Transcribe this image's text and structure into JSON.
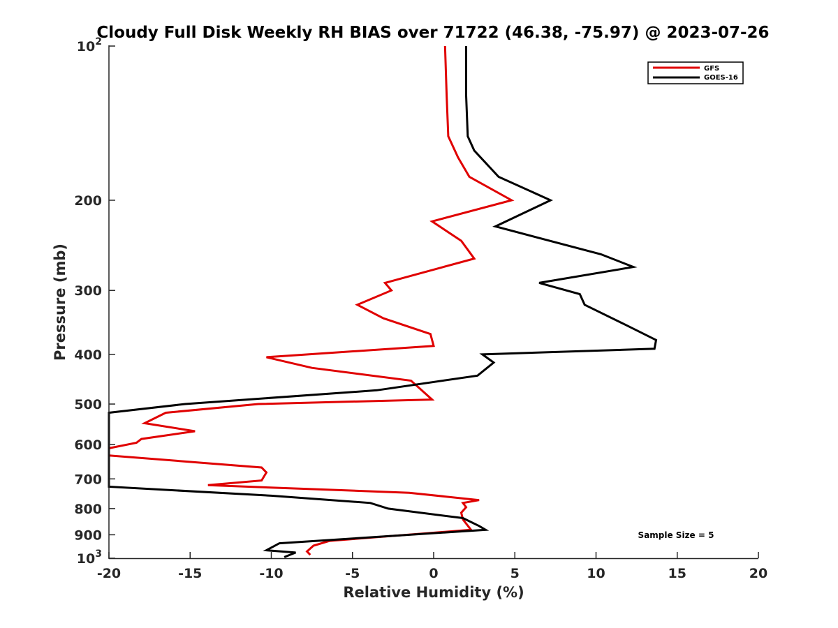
{
  "chart_data": {
    "type": "line",
    "title": "Cloudy Full Disk Weekly RH BIAS over 71722 (46.38, -75.97) @ 2023-07-26",
    "xlabel": "Relative Humidity (%)",
    "ylabel": "Pressure (mb)",
    "xlim": [
      -20,
      20
    ],
    "ylim": [
      1000,
      100
    ],
    "yscale": "log",
    "x_ticks": [
      -20,
      -15,
      -10,
      -5,
      0,
      5,
      10,
      15,
      20
    ],
    "x_tick_labels": [
      "-20",
      "-15",
      "-10",
      "-5",
      "0",
      "5",
      "10",
      "15",
      "20"
    ],
    "y_ticks": [
      100,
      200,
      300,
      400,
      500,
      600,
      700,
      800,
      900,
      1000
    ],
    "y_tick_labels": [
      {
        "base": "10",
        "exp": "2"
      },
      {
        "text": "200"
      },
      {
        "text": "300"
      },
      {
        "text": "400"
      },
      {
        "text": "500"
      },
      {
        "text": "600"
      },
      {
        "text": "700"
      },
      {
        "text": "800"
      },
      {
        "text": "900"
      },
      {
        "base": "10",
        "exp": "3"
      }
    ],
    "legend": {
      "position": "top-right",
      "entries": [
        "GFS",
        "GOES-16"
      ]
    },
    "annotation": "Sample Size = 5",
    "series": [
      {
        "name": "GFS",
        "color": "#e00000",
        "points": [
          [
            0.7,
            100
          ],
          [
            0.8,
            125
          ],
          [
            0.9,
            150
          ],
          [
            1.5,
            165
          ],
          [
            2.2,
            180
          ],
          [
            4.8,
            200
          ],
          [
            -0.1,
            220
          ],
          [
            1.7,
            240
          ],
          [
            2.5,
            260
          ],
          [
            -3.0,
            290
          ],
          [
            -2.6,
            300
          ],
          [
            -4.7,
            320
          ],
          [
            -3.1,
            340
          ],
          [
            -0.2,
            365
          ],
          [
            0.0,
            385
          ],
          [
            -10.3,
            405
          ],
          [
            -7.5,
            425
          ],
          [
            -1.4,
            450
          ],
          [
            -0.9,
            465
          ],
          [
            -0.1,
            490
          ],
          [
            -10.8,
            500
          ],
          [
            -16.5,
            520
          ],
          [
            -17.8,
            545
          ],
          [
            -14.7,
            565
          ],
          [
            -18.0,
            585
          ],
          [
            -18.3,
            595
          ],
          [
            -20.0,
            610
          ],
          [
            -20.0,
            630
          ],
          [
            -10.6,
            665
          ],
          [
            -10.3,
            680
          ],
          [
            -10.6,
            705
          ],
          [
            -13.9,
            720
          ],
          [
            -1.5,
            745
          ],
          [
            2.8,
            770
          ],
          [
            1.8,
            780
          ],
          [
            2.0,
            795
          ],
          [
            1.7,
            815
          ],
          [
            1.8,
            840
          ],
          [
            2.3,
            880
          ],
          [
            -6.4,
            925
          ],
          [
            -7.4,
            945
          ],
          [
            -7.8,
            970
          ],
          [
            -7.6,
            985
          ]
        ]
      },
      {
        "name": "GOES-16",
        "color": "#000000",
        "points": [
          [
            2.0,
            100
          ],
          [
            2.0,
            125
          ],
          [
            2.1,
            150
          ],
          [
            2.5,
            160
          ],
          [
            4.0,
            180
          ],
          [
            7.2,
            200
          ],
          [
            3.8,
            225
          ],
          [
            10.3,
            255
          ],
          [
            12.3,
            270
          ],
          [
            6.5,
            290
          ],
          [
            9.0,
            305
          ],
          [
            9.3,
            320
          ],
          [
            11.8,
            350
          ],
          [
            13.7,
            375
          ],
          [
            13.6,
            390
          ],
          [
            3.0,
            400
          ],
          [
            3.7,
            415
          ],
          [
            2.7,
            440
          ],
          [
            -3.5,
            470
          ],
          [
            -15.3,
            500
          ],
          [
            -20.0,
            520
          ],
          [
            -20.0,
            725
          ],
          [
            -10.0,
            755
          ],
          [
            -3.9,
            780
          ],
          [
            -2.8,
            800
          ],
          [
            1.8,
            835
          ],
          [
            2.8,
            865
          ],
          [
            3.2,
            880
          ],
          [
            -9.5,
            935
          ],
          [
            -10.3,
            965
          ],
          [
            -8.5,
            975
          ],
          [
            -9.2,
            995
          ]
        ]
      }
    ]
  }
}
